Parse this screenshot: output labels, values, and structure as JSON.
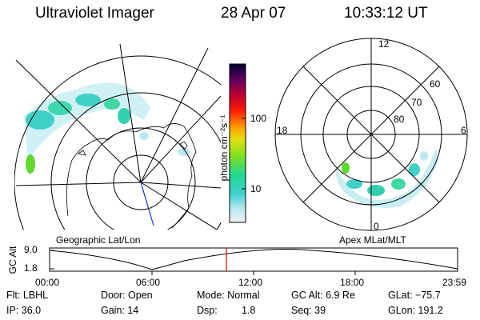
{
  "header": {
    "instrument": "Ultraviolet Imager",
    "date": "28 Apr 07",
    "time": "10:33:12 UT"
  },
  "colorbar": {
    "unit_label": "photon cm⁻²s⁻¹",
    "ticks": [
      "100",
      "10"
    ]
  },
  "polar_plot": {
    "mlt_labels": [
      "12",
      "18",
      "6",
      "0"
    ],
    "mlat_labels": [
      "60",
      "70",
      "80"
    ]
  },
  "map_labels": {
    "left": "Geographic Lat/Lon",
    "right": "Apex MLat/MLT"
  },
  "altitude_plot": {
    "ylabel": "GC Alt",
    "yticks": [
      "9.0",
      "1.8"
    ],
    "xticks": [
      "00:00",
      "06:00",
      "12:00",
      "18:00",
      "23:59"
    ]
  },
  "info": {
    "flt": "Flt: LBHL",
    "door": "Door: Open",
    "mode": "Mode: Normal",
    "gc_alt": "GC Alt: 6.9 Re",
    "glat": "GLat: −75.7",
    "ip": "IP: 36.0",
    "gain": "Gain: 14",
    "dsp_label": "Dsp:",
    "dsp_value": "1.8",
    "seq": "Seq: 39",
    "glon": "GLon: 191.2"
  }
}
